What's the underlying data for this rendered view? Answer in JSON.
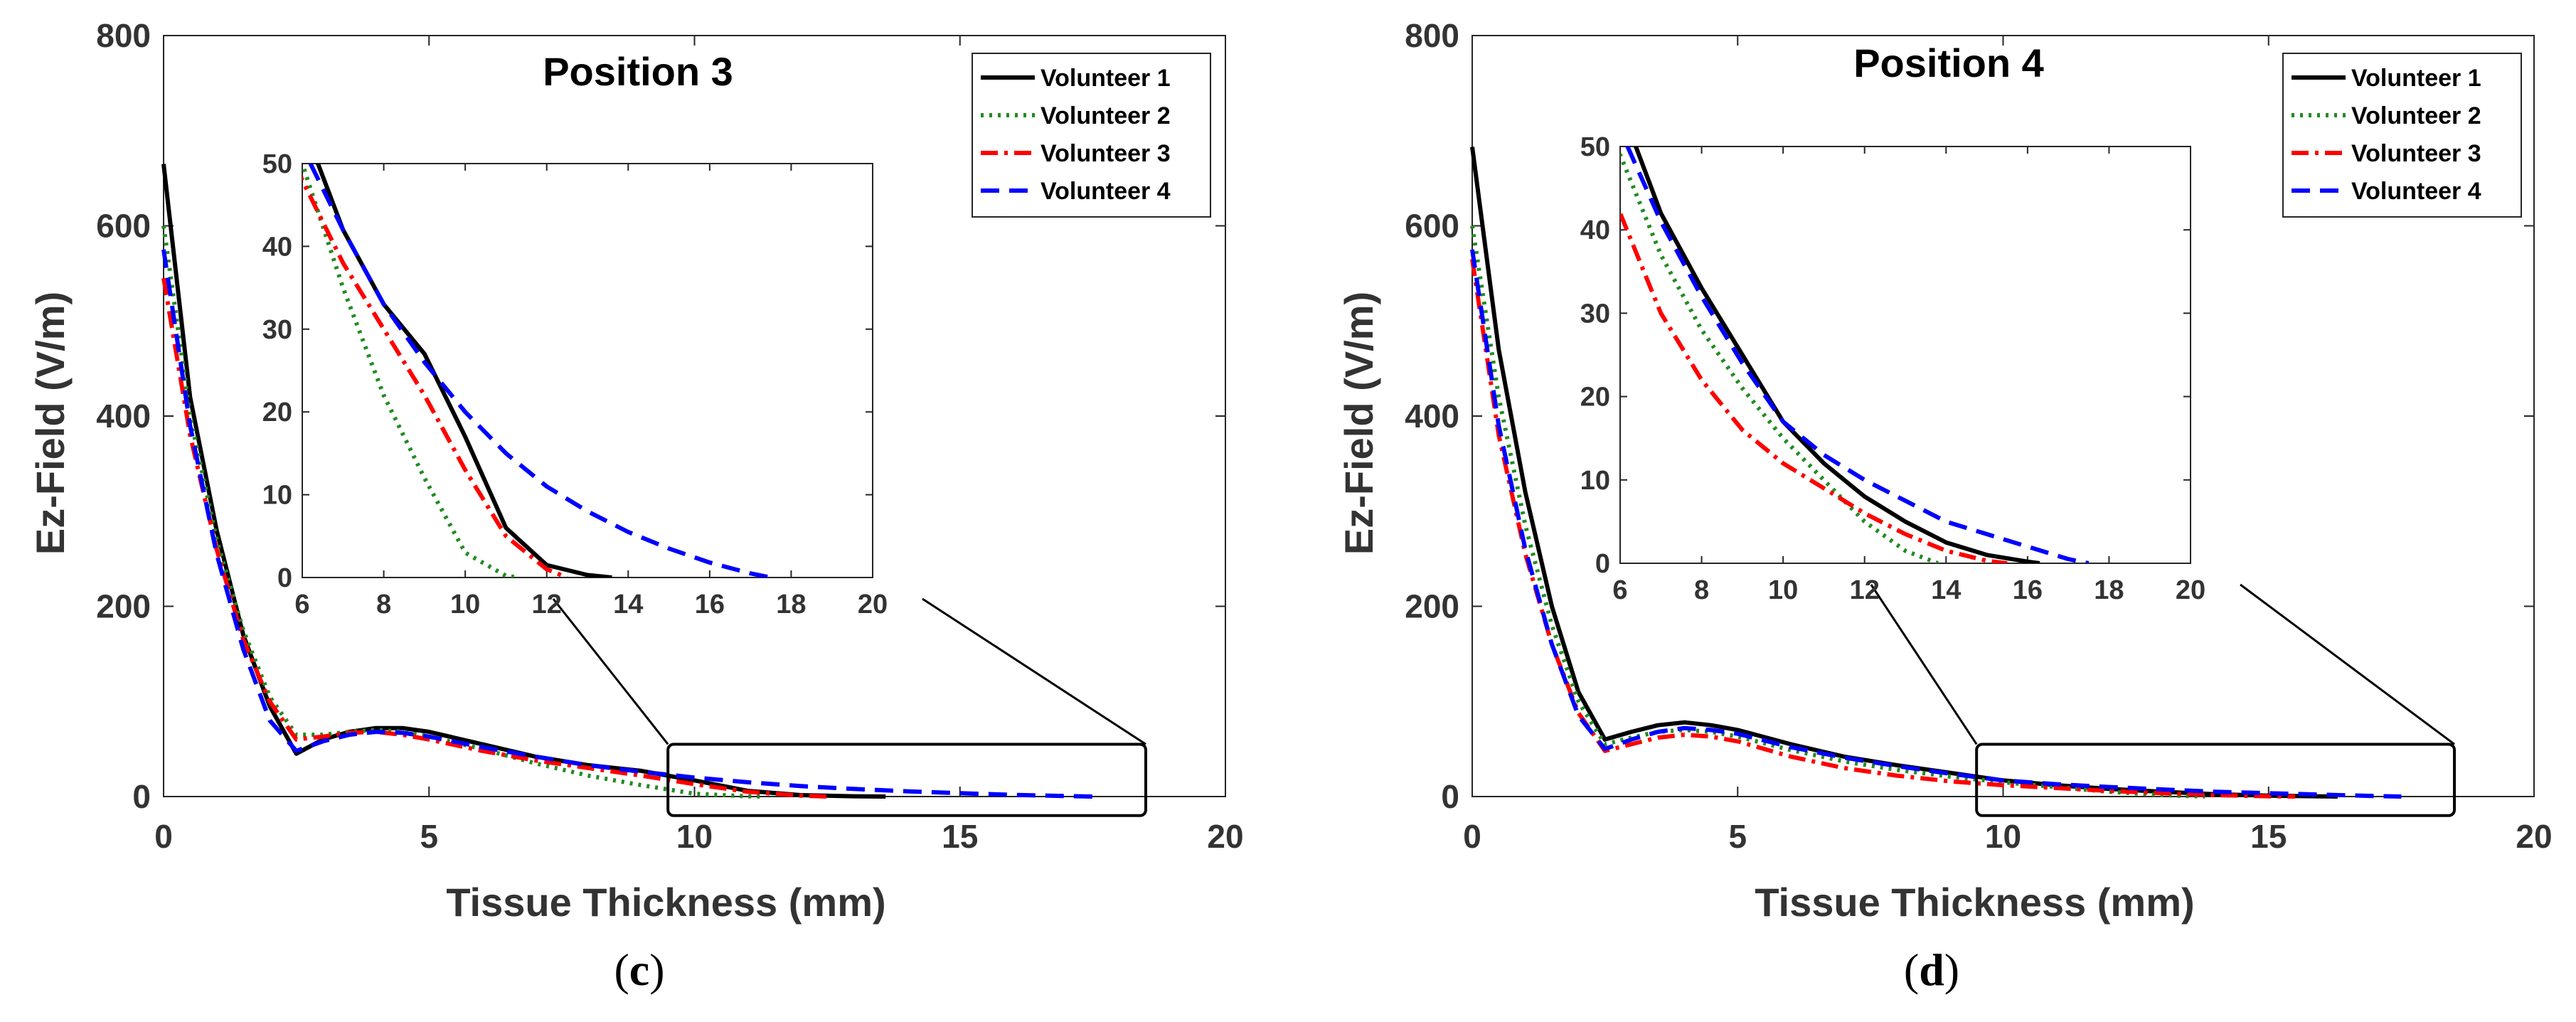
{
  "colors": {
    "Volunteer 1": "#000000",
    "Volunteer 2": "#228b22",
    "Volunteer 3": "#ff0000",
    "Volunteer 4": "#0000ff"
  },
  "chart_data": [
    {
      "type": "line",
      "panel": "c",
      "caption_open": "(",
      "caption_letter": "c",
      "caption_close": ")",
      "title": "Position 3",
      "xlabel": "Tissue Thickness (mm)",
      "ylabel": "Ez-Field (V/m)",
      "xlim": [
        0,
        20
      ],
      "ylim": [
        0,
        800
      ],
      "xticks": [
        0,
        5,
        10,
        15,
        20
      ],
      "yticks": [
        0,
        200,
        400,
        600,
        800
      ],
      "legend_position": "top-right",
      "series": [
        {
          "name": "Volunteer 1",
          "style": "solid",
          "x": [
            0,
            0.5,
            1.0,
            1.5,
            2.0,
            2.5,
            3.0,
            3.5,
            4.0,
            4.5,
            5.0,
            6.0,
            7.0,
            8.0,
            9.0,
            10.0,
            11.0,
            12.0,
            13.0,
            13.6
          ],
          "y": [
            665,
            420,
            280,
            170,
            95,
            45,
            60,
            68,
            72,
            72,
            68,
            55,
            42,
            33,
            27,
            17,
            6,
            1.5,
            0.3,
            0
          ]
        },
        {
          "name": "Volunteer 2",
          "style": "dotted",
          "x": [
            0,
            0.5,
            1.0,
            1.5,
            2.0,
            2.5,
            3.0,
            3.5,
            4.0,
            4.5,
            5.0,
            6.0,
            7.0,
            8.0,
            9.0,
            10.0,
            11.0,
            11.3
          ],
          "y": [
            600,
            400,
            270,
            175,
            105,
            65,
            65,
            68,
            70,
            68,
            63,
            50,
            35,
            22,
            12,
            3,
            0.2,
            0
          ]
        },
        {
          "name": "Volunteer 3",
          "style": "dashdot",
          "x": [
            0,
            0.5,
            1.0,
            1.5,
            2.0,
            2.5,
            3.0,
            3.5,
            4.0,
            4.5,
            5.0,
            6.0,
            7.0,
            8.0,
            9.0,
            10.0,
            11.0,
            12.0,
            12.5
          ],
          "y": [
            545,
            380,
            260,
            165,
            100,
            60,
            63,
            67,
            68,
            65,
            60,
            48,
            38,
            30,
            22,
            13,
            5,
            1,
            0
          ]
        },
        {
          "name": "Volunteer 4",
          "style": "dashed",
          "x": [
            0,
            0.5,
            1.0,
            1.5,
            2.0,
            2.5,
            3.0,
            3.5,
            4.0,
            4.5,
            5.0,
            6.0,
            7.0,
            8.0,
            9.0,
            10.0,
            11.0,
            12.0,
            13.0,
            14.0,
            15.0,
            16.0,
            17.0,
            17.5
          ],
          "y": [
            575,
            390,
            255,
            155,
            80,
            48,
            58,
            65,
            68,
            67,
            63,
            52,
            42,
            33,
            26,
            20,
            15,
            11,
            8,
            5.5,
            3.5,
            1.8,
            0.5,
            0
          ]
        }
      ],
      "inset": {
        "xlim": [
          6,
          20
        ],
        "ylim": [
          0,
          50
        ],
        "xticks": [
          6,
          8,
          10,
          12,
          14,
          16,
          18,
          20
        ],
        "yticks": [
          0,
          10,
          20,
          30,
          40,
          50
        ],
        "zoom_box": {
          "x": [
            9.5,
            18.5
          ],
          "y": [
            -20,
            55
          ]
        }
      }
    },
    {
      "type": "line",
      "panel": "d",
      "caption_open": "(",
      "caption_letter": "d",
      "caption_close": ")",
      "title": "Position 4",
      "xlabel": "Tissue Thickness (mm)",
      "ylabel": "Ez-Field (V/m)",
      "xlim": [
        0,
        20
      ],
      "ylim": [
        0,
        800
      ],
      "xticks": [
        0,
        5,
        10,
        15,
        20
      ],
      "yticks": [
        0,
        200,
        400,
        600,
        800
      ],
      "legend_position": "top-right",
      "series": [
        {
          "name": "Volunteer 1",
          "style": "solid",
          "x": [
            0,
            0.5,
            1.0,
            1.5,
            2.0,
            2.5,
            3.0,
            3.5,
            4.0,
            4.5,
            5.0,
            6.0,
            7.0,
            8.0,
            9.0,
            10.0,
            11.0,
            12.0,
            13.0,
            14.0,
            15.0,
            16.0,
            16.3
          ],
          "y": [
            683,
            470,
            320,
            200,
            110,
            60,
            68,
            75,
            78,
            75,
            70,
            55,
            42,
            33,
            25,
            17,
            12,
            8,
            5,
            2.5,
            1,
            0.2,
            0
          ]
        },
        {
          "name": "Volunteer 2",
          "style": "dotted",
          "x": [
            0,
            0.5,
            1.0,
            1.5,
            2.0,
            2.5,
            3.0,
            3.5,
            4.0,
            4.5,
            5.0,
            6.0,
            7.0,
            8.0,
            9.0,
            10.0,
            11.0,
            12.0,
            13.0,
            13.8
          ],
          "y": [
            600,
            420,
            285,
            180,
            100,
            55,
            62,
            68,
            70,
            68,
            63,
            49,
            37,
            28,
            21,
            15,
            10,
            5,
            1.5,
            0
          ]
        },
        {
          "name": "Volunteer 3",
          "style": "dashdot",
          "x": [
            0,
            0.5,
            1.0,
            1.5,
            2.0,
            2.5,
            3.0,
            3.5,
            4.0,
            4.5,
            5.0,
            6.0,
            7.0,
            8.0,
            9.0,
            10.0,
            11.0,
            12.0,
            13.0,
            14.0,
            15.0,
            15.5
          ],
          "y": [
            565,
            380,
            255,
            160,
            88,
            48,
            55,
            62,
            65,
            63,
            58,
            42,
            30,
            22,
            16,
            12,
            9,
            6,
            3.5,
            1.5,
            0.3,
            0
          ]
        },
        {
          "name": "Volunteer 4",
          "style": "dashed",
          "x": [
            0,
            0.5,
            1.0,
            1.5,
            2.0,
            2.5,
            3.0,
            3.5,
            4.0,
            4.5,
            5.0,
            6.0,
            7.0,
            8.0,
            9.0,
            10.0,
            11.0,
            12.0,
            13.0,
            14.0,
            15.0,
            16.0,
            17.0,
            17.5
          ],
          "y": [
            575,
            390,
            260,
            160,
            85,
            50,
            60,
            68,
            72,
            70,
            66,
            52,
            41,
            32,
            24,
            17,
            13,
            10,
            7.5,
            5,
            3.5,
            2,
            0.5,
            0
          ]
        }
      ],
      "inset": {
        "xlim": [
          6,
          20
        ],
        "ylim": [
          0,
          50
        ],
        "xticks": [
          6,
          8,
          10,
          12,
          14,
          16,
          18,
          20
        ],
        "yticks": [
          0,
          10,
          20,
          30,
          40,
          50
        ],
        "zoom_box": {
          "x": [
            9.5,
            18.5
          ],
          "y": [
            -20,
            55
          ]
        }
      }
    }
  ]
}
